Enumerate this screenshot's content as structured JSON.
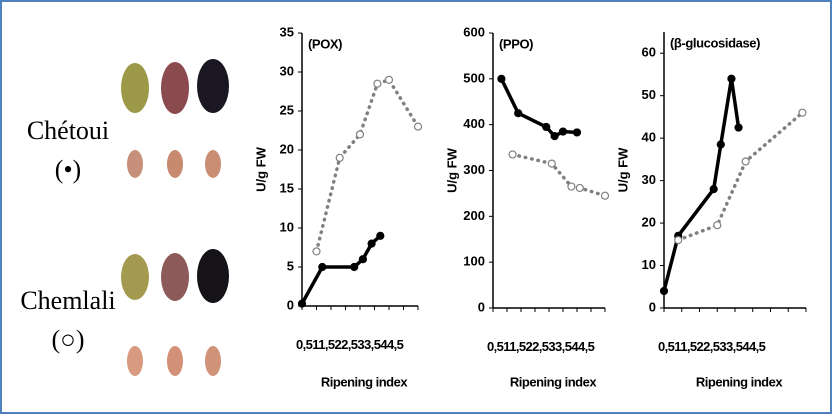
{
  "photo_labels": [
    "Chétoui",
    "(•)",
    "Chemlali",
    "(○)"
  ],
  "chart_data": [
    {
      "type": "line",
      "annotation": "(POX)",
      "ylabel": "U/g FW",
      "xlabel": "Ripening index",
      "xlim": [
        0.5,
        4.5
      ],
      "ylim": [
        0,
        35
      ],
      "xticks": [
        {
          "value": 0.5,
          "label": "0,5"
        },
        1,
        {
          "value": 1.5,
          "label": "1,5"
        },
        2,
        {
          "value": 2.5,
          "label": "2,5"
        },
        3,
        {
          "value": 3.5,
          "label": "3,5"
        },
        4,
        {
          "value": 4.5,
          "label": "4,5"
        }
      ],
      "yticks": [
        0,
        5,
        10,
        15,
        20,
        25,
        30,
        35
      ],
      "series": [
        {
          "color": "#000000",
          "x": [
            0.5,
            1.2,
            2.3,
            2.6,
            2.9,
            3.2
          ],
          "values": [
            0.3,
            5,
            5,
            6,
            8,
            9
          ]
        },
        {
          "color": "#808080",
          "x": [
            1.0,
            1.8,
            2.5,
            3.1,
            3.5,
            4.5
          ],
          "values": [
            7,
            19,
            22,
            28.5,
            29,
            23
          ]
        }
      ]
    },
    {
      "type": "line",
      "annotation": "(PPO)",
      "ylabel": "U/g FW",
      "xlabel": "Ripening index",
      "xlim": [
        0.5,
        4.5
      ],
      "ylim": [
        0,
        600
      ],
      "xticks": [
        {
          "value": 0.5,
          "label": "0,5"
        },
        1,
        {
          "value": 1.5,
          "label": "1,5"
        },
        2,
        {
          "value": 2.5,
          "label": "2,5"
        },
        3,
        {
          "value": 3.5,
          "label": "3,5"
        },
        4,
        {
          "value": 4.5,
          "label": "4,5"
        }
      ],
      "yticks": [
        0,
        100,
        200,
        300,
        400,
        500,
        600
      ],
      "series": [
        {
          "color": "#000000",
          "x": [
            0.8,
            1.4,
            2.4,
            2.7,
            3.0,
            3.5
          ],
          "values": [
            500,
            425,
            395,
            375,
            385,
            383
          ]
        },
        {
          "color": "#808080",
          "x": [
            1.2,
            2.6,
            3.3,
            3.6,
            4.5
          ],
          "values": [
            335,
            315,
            265,
            262,
            245
          ]
        }
      ]
    },
    {
      "type": "line",
      "annotation": "(β-glucosidase)",
      "ylabel": "U/g FW",
      "xlabel": "Ripening index",
      "xlim": [
        0.5,
        4.5
      ],
      "ylim": [
        0,
        65
      ],
      "xticks": [
        {
          "value": 0.5,
          "label": "0,5"
        },
        1,
        {
          "value": 1.5,
          "label": "1,5"
        },
        2,
        {
          "value": 2.5,
          "label": "2,5"
        },
        3,
        {
          "value": 3.5,
          "label": "3,5"
        },
        4,
        {
          "value": 4.5,
          "label": "4,5"
        }
      ],
      "yticks": [
        0,
        10,
        20,
        30,
        40,
        50,
        60
      ],
      "series": [
        {
          "color": "#000000",
          "x": [
            0.5,
            0.9,
            1.9,
            2.1,
            2.4,
            2.6
          ],
          "values": [
            4,
            17,
            28,
            38.5,
            54,
            42.5
          ]
        },
        {
          "color": "#808080",
          "x": [
            0.9,
            2.0,
            2.8,
            4.4
          ],
          "values": [
            16,
            19.5,
            34.5,
            46
          ]
        }
      ]
    }
  ]
}
